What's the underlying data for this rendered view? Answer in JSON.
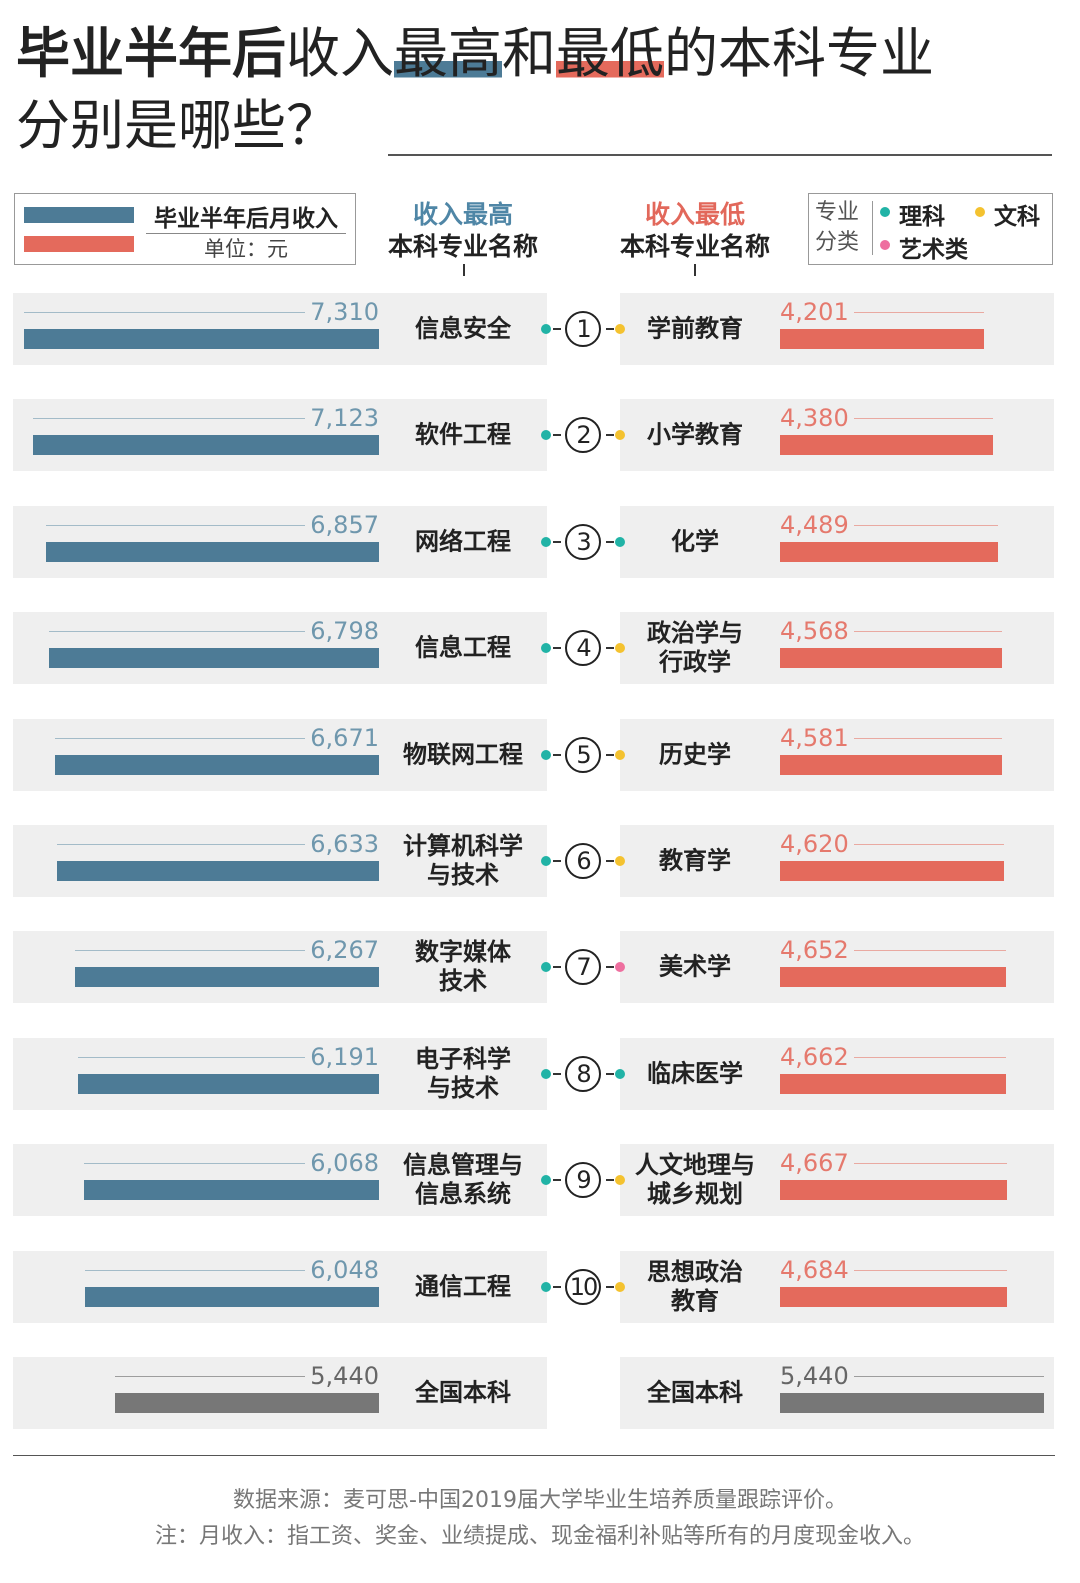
{
  "title": [
    "毕业半年后",
    "收入",
    "最高",
    "和",
    "最低",
    "的本科专业",
    "分别是哪些？"
  ],
  "legend": {
    "label": "毕业半年后月收入",
    "unit": "单位：元"
  },
  "category_legend": {
    "title": "专业\n分类",
    "items": [
      {
        "name": "理科",
        "color": "#21b3a6"
      },
      {
        "name": "文科",
        "color": "#f4c22f"
      },
      {
        "name": "艺术类",
        "color": "#ee6f9f"
      }
    ]
  },
  "ranks": [
    1,
    2,
    3,
    4,
    5,
    6,
    7,
    8,
    9,
    10
  ],
  "national": {
    "label": "全国本科",
    "value": 5440,
    "value_label": "5,440",
    "color": "#777777"
  },
  "chart_data": [
    {
      "type": "bar",
      "orientation": "horizontal",
      "side": "left",
      "header": [
        "收入最高",
        "本科专业名称"
      ],
      "header_color": "#4f86a6",
      "categories": [
        "信息安全",
        "软件工程",
        "网络工程",
        "信息工程",
        "物联网工程",
        "计算机科学\n与技术",
        "数字媒体\n技术",
        "电子科学\n与技术",
        "信息管理与\n信息系统",
        "通信工程"
      ],
      "major_types": [
        "理科",
        "理科",
        "理科",
        "理科",
        "理科",
        "理科",
        "理科",
        "理科",
        "理科",
        "理科"
      ],
      "series": [
        {
          "color": "#4d7b96",
          "values": [
            7310,
            7123,
            6857,
            6798,
            6671,
            6633,
            6267,
            6191,
            6068,
            6048
          ],
          "value_labels": [
            "7,310",
            "7,123",
            "6,857",
            "6,798",
            "6,671",
            "6,633",
            "6,267",
            "6,191",
            "6,068",
            "6,048"
          ]
        }
      ],
      "xlim": [
        0,
        7310
      ]
    },
    {
      "type": "bar",
      "orientation": "horizontal",
      "side": "right",
      "header": [
        "收入最低",
        "本科专业名称"
      ],
      "header_color": "#e2685b",
      "categories": [
        "学前教育",
        "小学教育",
        "化学",
        "政治学与\n行政学",
        "历史学",
        "教育学",
        "美术学",
        "临床医学",
        "人文地理与\n城乡规划",
        "思想政治\n教育"
      ],
      "major_types": [
        "文科",
        "文科",
        "理科",
        "文科",
        "文科",
        "文科",
        "艺术类",
        "理科",
        "文科",
        "文科"
      ],
      "series": [
        {
          "color": "#e46a5c",
          "values": [
            4201,
            4380,
            4489,
            4568,
            4581,
            4620,
            4652,
            4662,
            4667,
            4684
          ],
          "value_labels": [
            "4,201",
            "4,380",
            "4,489",
            "4,568",
            "4,581",
            "4,620",
            "4,652",
            "4,662",
            "4,667",
            "4,684"
          ]
        }
      ],
      "xlim": [
        0,
        7310
      ]
    }
  ],
  "source": "数据来源：麦可思-中国2019届大学毕业生培养质量跟踪评价。",
  "note": "注：月收入：指工资、奖金、业绩提成、现金福利补贴等所有的月度现金收入。"
}
